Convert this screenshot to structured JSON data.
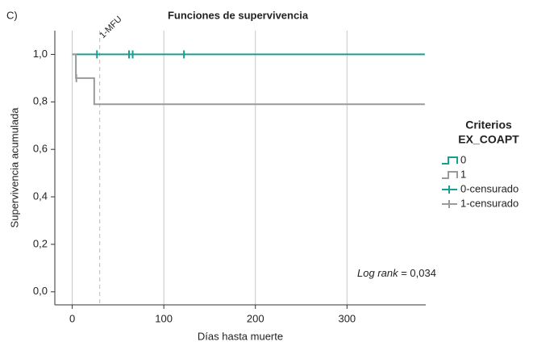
{
  "chart_data": {
    "type": "survival",
    "panel_label": "C)",
    "title": "Funciones de supervivencia",
    "x_label": "Días hasta muerte",
    "y_label": "Supervivencia acumulada",
    "xlim": [
      -19,
      386
    ],
    "ylim": [
      -0.055,
      1.1
    ],
    "xticks": [
      0,
      100,
      200,
      300
    ],
    "yticks": [
      {
        "value": 0,
        "label": "0,0"
      },
      {
        "value": 0.2,
        "label": "0,2"
      },
      {
        "value": 0.4,
        "label": "0,4"
      },
      {
        "value": 0.6,
        "label": "0,6"
      },
      {
        "value": 0.8,
        "label": "0,8"
      },
      {
        "value": 1,
        "label": "1,0"
      }
    ],
    "grid": true,
    "legend_title": [
      "Criterios",
      "EX_COAPT"
    ],
    "series": [
      {
        "name": "0",
        "color": "#1a9e92",
        "x": [
          0,
          385
        ],
        "values": [
          1,
          1
        ]
      },
      {
        "name": "1",
        "color": "#9a9a9a",
        "x": [
          0,
          4,
          24,
          385
        ],
        "values": [
          1,
          0.9,
          0.79,
          0.79
        ]
      }
    ],
    "censored": [
      {
        "name": "0-censurado",
        "color": "#1a9e92",
        "x": [
          27,
          62,
          66,
          122
        ],
        "values": [
          1,
          1,
          1,
          1
        ]
      },
      {
        "name": "1-censurado",
        "color": "#9a9a9a",
        "x": [
          4.5
        ],
        "values": [
          0.9
        ]
      }
    ],
    "reference_line": {
      "x": 30,
      "label": "1-MFU"
    },
    "annotation": {
      "italic": "Log rank",
      "text": "= 0,034"
    }
  }
}
